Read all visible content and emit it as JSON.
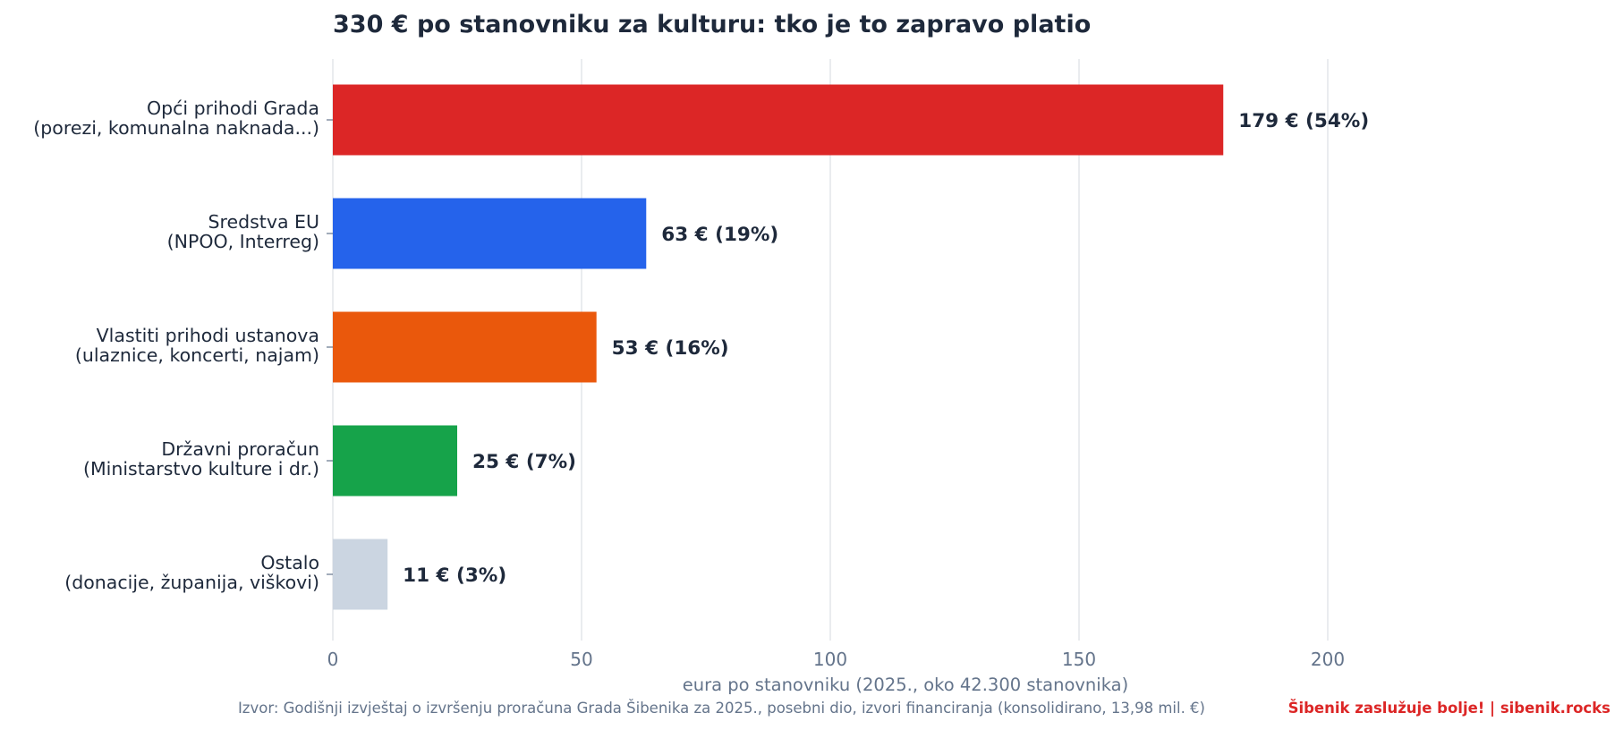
{
  "chart_data": {
    "type": "bar",
    "orientation": "horizontal",
    "title": "330 € po stanovniku za kulturu: tko je to zapravo platio",
    "categories": [
      [
        "Opći prihodi Grada",
        "(porezi, komunalna naknada...)"
      ],
      [
        "Sredstva EU",
        "(NPOO, Interreg)"
      ],
      [
        "Vlastiti prihodi ustanova",
        "(ulaznice, koncerti, najam)"
      ],
      [
        "Državni proračun",
        "(Ministarstvo kulture i dr.)"
      ],
      [
        "Ostalo",
        "(donacije, županija, viškovi)"
      ]
    ],
    "values": [
      179,
      63,
      53,
      25,
      11
    ],
    "value_labels": [
      "179 €  (54%)",
      "63 €  (19%)",
      "53 €  (16%)",
      "25 €  (7%)",
      "11 €  (3%)"
    ],
    "colors": [
      "#dc2626",
      "#2563eb",
      "#ea580c",
      "#16a34a",
      "#cbd5e1"
    ],
    "xlabel": "eura po stanovniku (2025., oko 42.300 stanovnika)",
    "ylabel": "",
    "xlim": [
      0,
      250
    ],
    "xticks": [
      0,
      50,
      100,
      150,
      200
    ],
    "grid": "vertical"
  },
  "footer": {
    "source": "Izvor: Godišnji izvještaj o izvršenju proračuna Grada Šibenika za 2025., posebni dio, izvori financiranja (konsolidirano, 13,98 mil. €)",
    "brand": "Šibenik zaslužuje bolje!  |  sibenik.rocks"
  }
}
